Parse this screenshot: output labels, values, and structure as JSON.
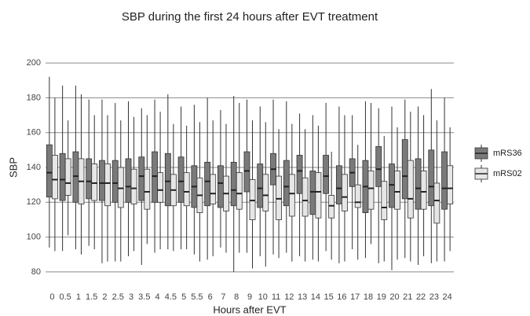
{
  "chart_data": {
    "type": "box",
    "title": "SBP during the first 24 hours after EVT treatment",
    "x_label": "Hours after EVT",
    "y_label": "SBP",
    "categories": [
      "0",
      "0.5",
      "1",
      "1.5",
      "2",
      "2.5",
      "3",
      "3.5",
      "4",
      "4.5",
      "5",
      "5.5",
      "6",
      "7",
      "8",
      "9",
      "10",
      "11",
      "12",
      "13",
      "14",
      "15",
      "16",
      "17",
      "18",
      "19",
      "20",
      "21",
      "22",
      "23",
      "24"
    ],
    "ylim": [
      75,
      205
    ],
    "yticks": [
      80,
      100,
      120,
      140,
      160,
      180,
      200
    ],
    "grid": true,
    "legend": "right",
    "series": [
      {
        "name": "mRS36",
        "color": "#7a7a7a",
        "low": [
          94,
          92,
          93,
          95,
          85,
          86,
          89,
          84,
          91,
          93,
          93,
          90,
          87,
          94,
          80,
          91,
          89,
          90,
          91,
          89,
          87,
          92,
          85,
          93,
          88,
          85,
          81,
          88,
          84,
          85,
          86
        ],
        "q1": [
          123,
          121,
          120,
          122,
          121,
          120,
          120,
          121,
          120,
          118,
          120,
          117,
          118,
          117,
          118,
          126,
          117,
          130,
          118,
          125,
          113,
          125,
          119,
          129,
          114,
          129,
          117,
          122,
          116,
          118,
          116
        ],
        "median": [
          137,
          133,
          135,
          132,
          131,
          131,
          129,
          135,
          135,
          132,
          132,
          129,
          132,
          131,
          127,
          138,
          128,
          139,
          129,
          138,
          126,
          135,
          128,
          137,
          129,
          139,
          130,
          135,
          128,
          129,
          128
        ],
        "q3": [
          153,
          148,
          149,
          145,
          144,
          144,
          145,
          146,
          149,
          148,
          146,
          141,
          143,
          141,
          143,
          149,
          142,
          148,
          144,
          147,
          138,
          147,
          141,
          145,
          144,
          152,
          142,
          156,
          145,
          150,
          149
        ],
        "high": [
          192,
          187,
          187,
          179,
          179,
          177,
          178,
          174,
          179,
          182,
          175,
          176,
          180,
          173,
          181,
          179,
          175,
          179,
          178,
          171,
          170,
          177,
          175,
          170,
          178,
          174,
          175,
          179,
          175,
          185,
          180
        ]
      },
      {
        "name": "mRS02",
        "color": "#e6e6e6",
        "low": [
          92,
          101,
          90,
          93,
          86,
          86,
          92,
          96,
          93,
          92,
          93,
          86,
          89,
          91,
          91,
          82,
          83,
          88,
          86,
          86,
          86,
          87,
          86,
          87,
          96,
          86,
          87,
          86,
          89,
          86,
          92
        ],
        "q1": [
          122,
          124,
          119,
          121,
          118,
          117,
          119,
          116,
          120,
          118,
          118,
          114,
          119,
          115,
          116,
          110,
          115,
          110,
          112,
          112,
          111,
          111,
          115,
          117,
          116,
          110,
          116,
          111,
          116,
          108,
          119
        ],
        "median": [
          133,
          131,
          132,
          131,
          131,
          128,
          128,
          126,
          127,
          127,
          126,
          124,
          125,
          125,
          125,
          121,
          124,
          122,
          125,
          121,
          126,
          118,
          123,
          120,
          128,
          117,
          126,
          122,
          126,
          121,
          128
        ],
        "q3": [
          147,
          145,
          145,
          142,
          142,
          140,
          139,
          139,
          137,
          136,
          137,
          134,
          136,
          135,
          137,
          133,
          136,
          135,
          136,
          134,
          137,
          124,
          136,
          130,
          138,
          132,
          138,
          144,
          138,
          131,
          141
        ],
        "high": [
          180,
          167,
          182,
          170,
          170,
          167,
          169,
          170,
          172,
          165,
          164,
          166,
          167,
          165,
          177,
          167,
          166,
          162,
          165,
          162,
          164,
          149,
          170,
          153,
          177,
          158,
          163,
          172,
          170,
          167,
          163
        ]
      }
    ]
  }
}
